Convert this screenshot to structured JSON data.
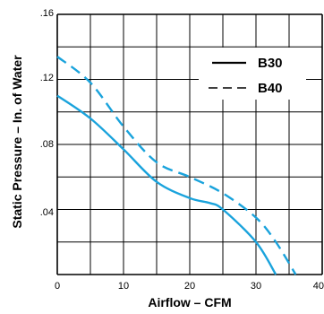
{
  "chart_data": {
    "type": "line",
    "xlabel": "Airflow – CFM",
    "ylabel": "Static Pressure – In. of Water",
    "xlim": [
      0,
      40
    ],
    "ylim": [
      0,
      0.16
    ],
    "x_ticks": [
      "0",
      "10",
      "20",
      "30",
      "40"
    ],
    "y_ticks": [
      ".04",
      ".08",
      ".12",
      ".16"
    ],
    "grid": true,
    "legend_position": "top-right",
    "line_color": "#1aa3dc",
    "series": [
      {
        "name": "B30",
        "style": "solid",
        "points": [
          [
            0,
            0.11
          ],
          [
            5,
            0.096
          ],
          [
            10,
            0.077
          ],
          [
            15,
            0.057
          ],
          [
            20,
            0.047
          ],
          [
            23,
            0.044
          ],
          [
            25,
            0.04
          ],
          [
            30,
            0.02
          ],
          [
            33,
            0.0
          ]
        ]
      },
      {
        "name": "B40",
        "style": "dashed",
        "points": [
          [
            0,
            0.134
          ],
          [
            5,
            0.118
          ],
          [
            10,
            0.091
          ],
          [
            15,
            0.069
          ],
          [
            20,
            0.06
          ],
          [
            25,
            0.05
          ],
          [
            30,
            0.035
          ],
          [
            33,
            0.02
          ],
          [
            36,
            0.0
          ]
        ]
      }
    ]
  }
}
